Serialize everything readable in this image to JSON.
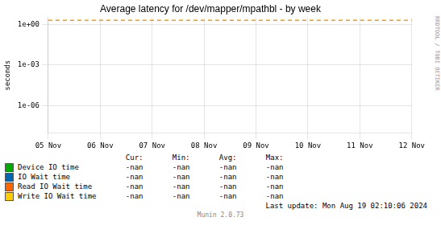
{
  "chart_data": {
    "type": "line",
    "title": "Average latency for /dev/mapper/mpathbl - by week",
    "y_label": "seconds",
    "categories": [
      "05 Nov",
      "06 Nov",
      "07 Nov",
      "08 Nov",
      "09 Nov",
      "10 Nov",
      "11 Nov",
      "12 Nov"
    ],
    "series": [
      {
        "name": "Device IO time",
        "color": "#00aa00",
        "values": [
          null,
          null,
          null,
          null,
          null,
          null,
          null,
          null
        ],
        "stats": [
          "-nan",
          "-nan",
          "-nan",
          "-nan"
        ]
      },
      {
        "name": "IO Wait time",
        "color": "#0066b3",
        "values": [
          null,
          null,
          null,
          null,
          null,
          null,
          null,
          null
        ],
        "stats": [
          "-nan",
          "-nan",
          "-nan",
          "-nan"
        ]
      },
      {
        "name": "Read IO Wait time",
        "color": "#ff6600",
        "values": [
          null,
          null,
          null,
          null,
          null,
          null,
          null,
          null
        ],
        "stats": [
          "-nan",
          "-nan",
          "-nan",
          "-nan"
        ]
      },
      {
        "name": "Write IO Wait time",
        "color": "#ffcc00",
        "values": [
          null,
          null,
          null,
          null,
          null,
          null,
          null,
          null
        ],
        "stats": [
          "-nan",
          "-nan",
          "-nan",
          "-nan"
        ]
      }
    ],
    "stat_headers": [
      "Cur:",
      "Min:",
      "Avg:",
      "Max:"
    ],
    "log": "y",
    "ylim": [
      1e-08,
      3.0
    ],
    "yticks": [
      {
        "value": 1e-06,
        "label": "1e-06"
      },
      {
        "value": 0.001,
        "label": "1e-03"
      },
      {
        "value": 1,
        "label": "1e+00"
      }
    ],
    "grid": true,
    "legend": "bottom",
    "reference_line": {
      "value": 2.0,
      "color": "#ff9900",
      "line_style": "dashed"
    },
    "watermark": "RRDTOOL / TOBI OETIKER",
    "last_update": "Last update: Mon Aug 19 02:10:06 2024",
    "footer": "Munin 2.0.73"
  }
}
